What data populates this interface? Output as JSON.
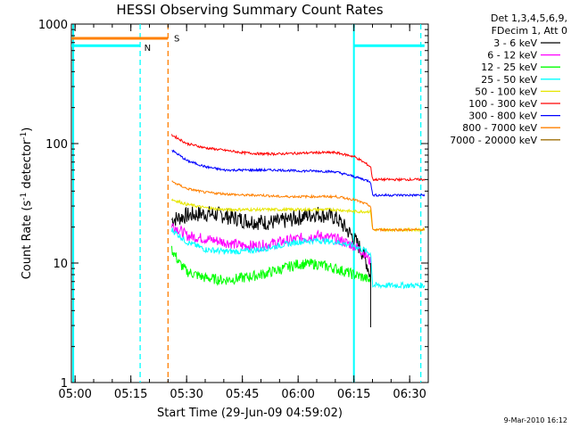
{
  "chart_data": {
    "type": "line",
    "title": "HESSI Observing Summary Count Rates",
    "xlabel": "Start Time (29-Jun-09 04:59:02)",
    "ylabel_main": "Count Rate (s",
    "ylabel_sup1": "-1",
    "ylabel_mid": " detector",
    "ylabel_sup2": "-1",
    "ylabel_end": ")",
    "yscale": "log",
    "ylim": [
      1,
      1000
    ],
    "xlim_minutes": [
      -1,
      95
    ],
    "x_ticks": [
      {
        "m": 0,
        "label": "05:00"
      },
      {
        "m": 15,
        "label": "05:15"
      },
      {
        "m": 30,
        "label": "05:30"
      },
      {
        "m": 45,
        "label": "05:45"
      },
      {
        "m": 60,
        "label": "06:00"
      },
      {
        "m": 75,
        "label": "06:15"
      },
      {
        "m": 90,
        "label": "06:30"
      }
    ],
    "y_ticks": [
      {
        "v": 1,
        "label": "1"
      },
      {
        "v": 10,
        "label": "10"
      },
      {
        "v": 100,
        "label": "100"
      },
      {
        "v": 1000,
        "label": "1000"
      }
    ],
    "legend": {
      "header1": "Det 1,3,4,5,6,9,",
      "header2": "FDecim 1, Att 0",
      "placement": "right"
    },
    "series": [
      {
        "name": "3 - 6 keV",
        "color": "#000000",
        "x": [
          26,
          30,
          35,
          40,
          45,
          50,
          55,
          60,
          65,
          70,
          75,
          78,
          79.5
        ],
        "y": [
          23,
          25,
          26,
          25,
          23,
          22,
          22,
          24,
          26,
          24,
          16,
          11,
          7.5
        ]
      },
      {
        "name": "6 - 12 keV",
        "color": "#ff00ff",
        "x": [
          26,
          30,
          35,
          40,
          45,
          50,
          55,
          60,
          65,
          70,
          75,
          78,
          79.5
        ],
        "y": [
          21,
          17,
          16,
          15,
          14,
          14,
          15,
          16,
          17,
          16,
          14,
          12,
          10
        ]
      },
      {
        "name": "12 - 25 keV",
        "color": "#00ff00",
        "x": [
          26,
          28,
          30,
          35,
          40,
          45,
          50,
          55,
          60,
          65,
          70,
          75,
          78,
          79.5
        ],
        "y": [
          13,
          10,
          8.5,
          7.5,
          7.2,
          7.5,
          8.0,
          8.8,
          9.8,
          9.8,
          9.0,
          8.0,
          7.5,
          7.0
        ]
      },
      {
        "name": "25 - 50 keV",
        "color": "#00ffff",
        "x": [
          -1,
          17.5
        ],
        "y": [
          660,
          660
        ],
        "x2": [
          26,
          30,
          35,
          40,
          45,
          50,
          55,
          60,
          65,
          70,
          75,
          79.5,
          80,
          94
        ],
        "y2": [
          19,
          15,
          13,
          12.5,
          12.5,
          13,
          14,
          15,
          15.5,
          15,
          14,
          12,
          6.5,
          6.5
        ],
        "x3": [
          75,
          94
        ],
        "y3": [
          660,
          660
        ]
      },
      {
        "name": "50 - 100 keV",
        "color": "#e6e600",
        "x": [
          26,
          30,
          35,
          40,
          45,
          50,
          55,
          60,
          65,
          70,
          75,
          79.5,
          80,
          94
        ],
        "y": [
          34,
          31,
          29,
          28,
          28,
          28,
          28,
          28,
          28,
          28,
          27,
          27,
          19,
          19
        ]
      },
      {
        "name": "100 - 300 keV",
        "color": "#ff0000",
        "x": [
          26,
          30,
          35,
          40,
          45,
          50,
          55,
          60,
          65,
          70,
          75,
          79.5,
          80,
          94
        ],
        "y": [
          118,
          100,
          92,
          88,
          84,
          82,
          82,
          83,
          84,
          84,
          78,
          64,
          50,
          50
        ]
      },
      {
        "name": "300 - 800 keV",
        "color": "#0000ff",
        "x": [
          26,
          30,
          35,
          40,
          45,
          50,
          55,
          60,
          65,
          70,
          75,
          79.5,
          80,
          94
        ],
        "y": [
          88,
          72,
          64,
          60,
          60,
          60,
          60,
          59,
          59,
          58,
          53,
          48,
          37,
          37
        ]
      },
      {
        "name": "800 - 7000 keV",
        "color": "#ff8000",
        "x": [
          26,
          30,
          35,
          40,
          45,
          50,
          55,
          60,
          65,
          70,
          75,
          79.5,
          80,
          94
        ],
        "y": [
          48,
          42,
          39,
          38,
          37,
          37,
          36,
          36,
          36,
          36,
          34,
          30,
          19,
          19
        ],
        "x2": [
          -1,
          25
        ],
        "y2": [
          760,
          760
        ]
      },
      {
        "name": "7000 - 20000 keV",
        "color": "#a0700a",
        "x": [],
        "y": []
      }
    ],
    "vertical_markers": [
      {
        "m": -0.5,
        "color": "#00ffff",
        "style": "solid"
      },
      {
        "m": 17.5,
        "color": "#00ffff",
        "style": "dashed"
      },
      {
        "m": 25,
        "color": "#ff8000",
        "style": "dashed"
      },
      {
        "m": 75,
        "color": "#00ffff",
        "style": "solid"
      },
      {
        "m": 93,
        "color": "#00ffff",
        "style": "dashed"
      }
    ],
    "annotations": [
      {
        "text": "N",
        "color": "#00ffff",
        "m": 18.6,
        "v": 650
      },
      {
        "text": "S",
        "color": "#ff8000",
        "m": 26.6,
        "v": 780
      }
    ],
    "dip": {
      "m": 79.5,
      "low": 2.9,
      "high": 10
    }
  },
  "footer": {
    "date": "9-Mar-2010 16:12"
  }
}
